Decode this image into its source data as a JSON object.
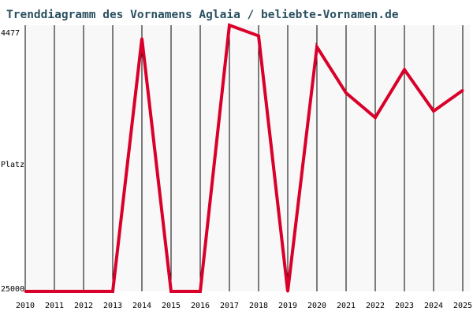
{
  "chart_data": {
    "type": "line",
    "title": "Trenddiagramm des Vornamens Aglaia / beliebte-Vornamen.de",
    "ylabel": "Platz",
    "y_axis": "rank, inverted (better rank at top)",
    "y_tick_top": "4477",
    "y_tick_bottom": "25000",
    "x": [
      "2010",
      "2011",
      "2012",
      "2013",
      "2014",
      "2015",
      "2016",
      "2017",
      "2018",
      "2019",
      "2020",
      "2021",
      "2022",
      "2023",
      "2024",
      "2025"
    ],
    "series": [
      {
        "values": [
          25000,
          25000,
          25000,
          25000,
          5500,
          25000,
          25000,
          4477,
          5300,
          25000,
          6150,
          9700,
          11600,
          7900,
          11100,
          9500
        ]
      }
    ],
    "ylim": [
      4477,
      25000
    ],
    "grid": "vertical lines at each year",
    "colors": {
      "line": "#d9002a",
      "grid": "#000000",
      "background": "#f8f8f8",
      "title": "#2a5060"
    }
  }
}
